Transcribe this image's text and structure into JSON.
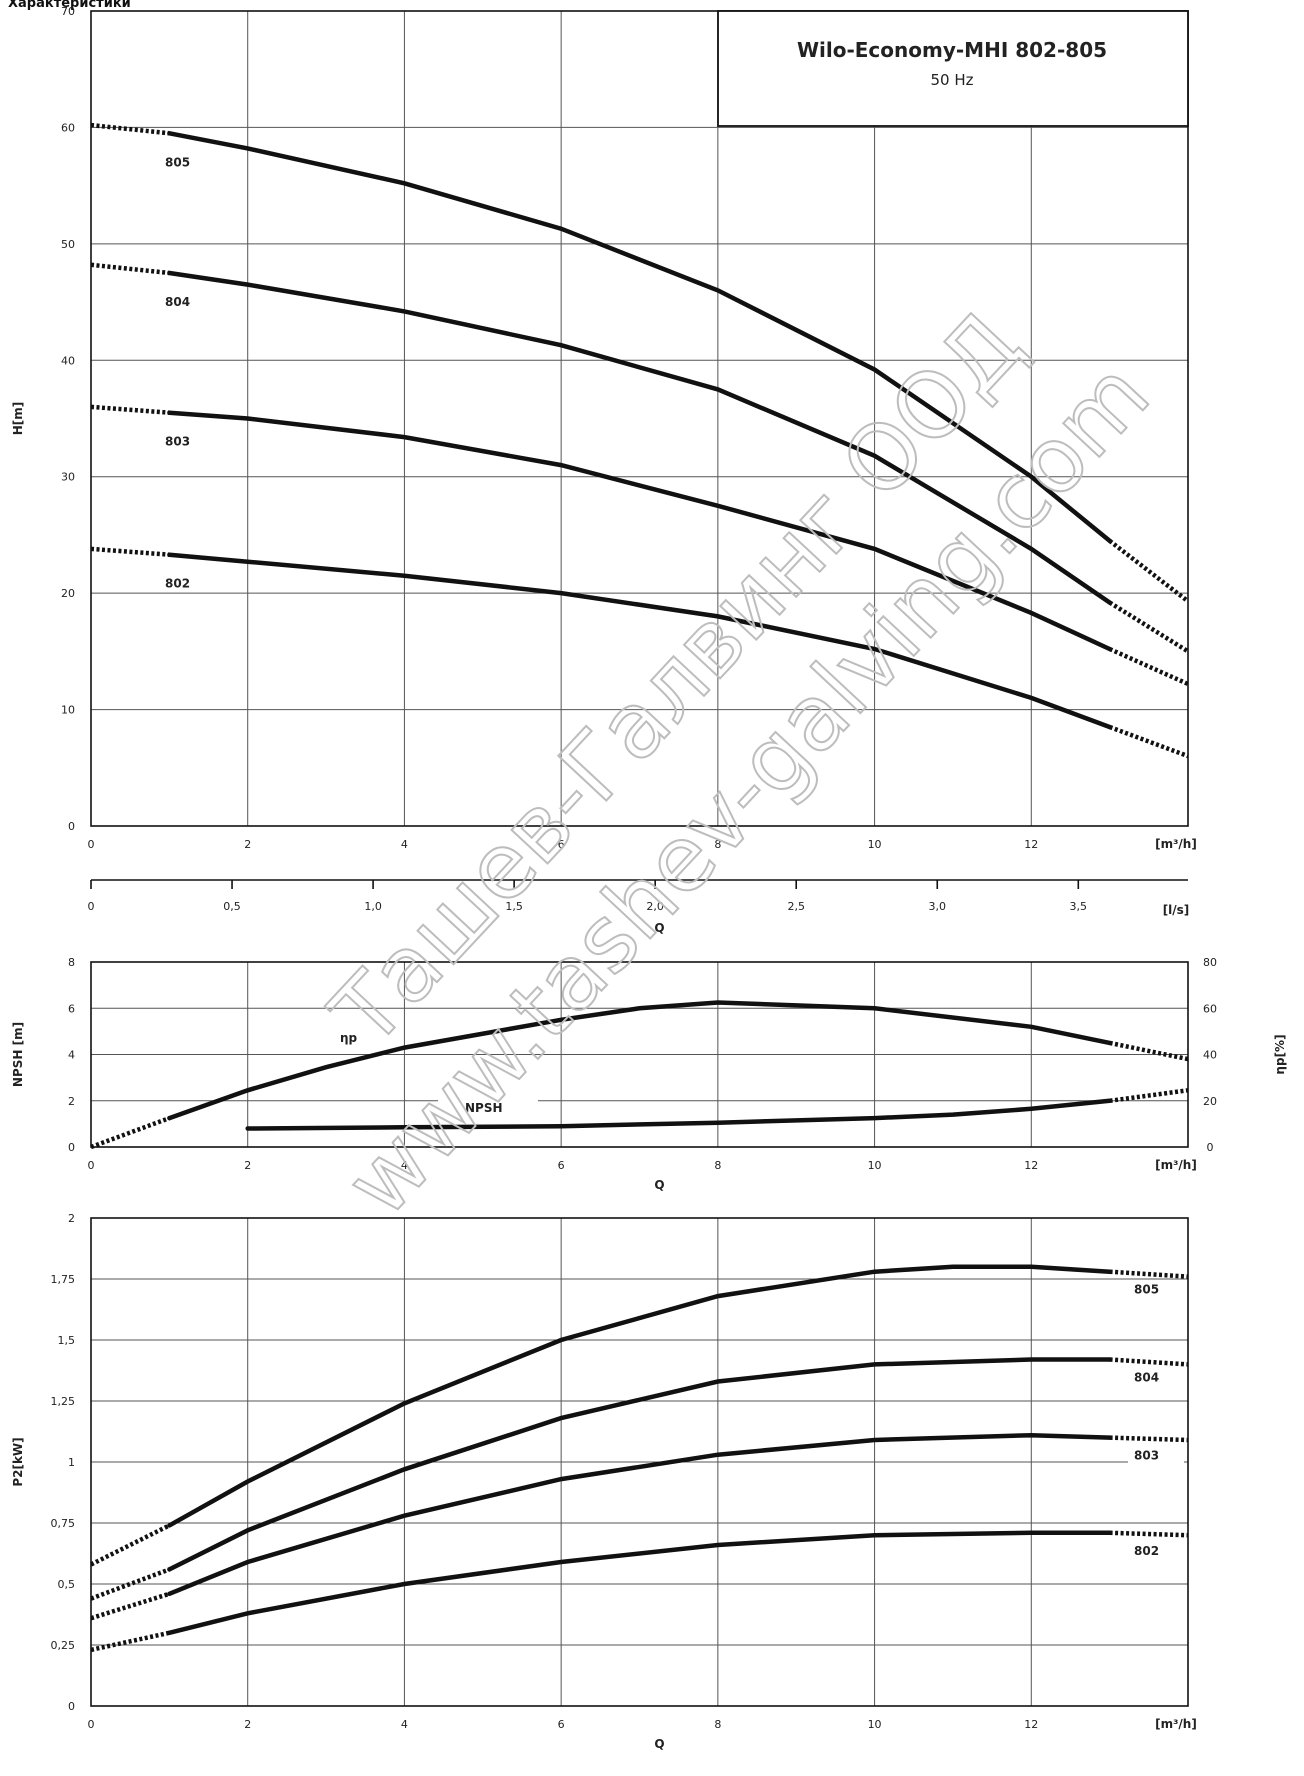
{
  "page": {
    "title": "Характеристики",
    "watermark_lines": [
      "Ташев-Галвинг ООД",
      "www.tashev-galving.com"
    ]
  },
  "legend_box": {
    "title": "Wilo-Economy-MHI 802-805",
    "subtitle": "50 Hz"
  },
  "chart_data": [
    {
      "id": "head",
      "type": "line",
      "xlabel": "[m³/h]",
      "ylabel": "H[m]",
      "xlim": [
        0,
        14
      ],
      "ylim": [
        0,
        70
      ],
      "xticks": [
        0,
        2,
        4,
        6,
        8,
        10,
        12
      ],
      "yticks": [
        0,
        10,
        20,
        30,
        40,
        50,
        60,
        70
      ],
      "grid": true,
      "solid_range": [
        1,
        13
      ],
      "secondary_axis": {
        "label": "[l/s]",
        "title": "Q",
        "ticks": [
          0,
          0.5,
          1.0,
          1.5,
          2.0,
          2.5,
          3.0,
          3.5
        ],
        "tick_labels": [
          "0",
          "0,5",
          "1,0",
          "1,5",
          "2,0",
          "2,5",
          "3,0",
          "3,5"
        ]
      },
      "series": [
        {
          "name": "805",
          "x": [
            0,
            1,
            2,
            4,
            6,
            8,
            10,
            12,
            13,
            14
          ],
          "y": [
            60.2,
            59.5,
            58.2,
            55.2,
            51.3,
            46.0,
            39.2,
            30.0,
            24.5,
            19.3
          ]
        },
        {
          "name": "804",
          "x": [
            0,
            1,
            2,
            4,
            6,
            8,
            10,
            12,
            13,
            14
          ],
          "y": [
            48.2,
            47.5,
            46.5,
            44.2,
            41.3,
            37.5,
            31.8,
            23.8,
            19.2,
            15.0
          ]
        },
        {
          "name": "803",
          "x": [
            0,
            1,
            2,
            4,
            6,
            8,
            10,
            12,
            13,
            14
          ],
          "y": [
            36.0,
            35.5,
            35.0,
            33.4,
            31.0,
            27.5,
            23.8,
            18.3,
            15.2,
            12.2
          ]
        },
        {
          "name": "802",
          "x": [
            0,
            1,
            2,
            4,
            6,
            8,
            10,
            12,
            13,
            14
          ],
          "y": [
            23.8,
            23.3,
            22.7,
            21.5,
            20.0,
            18.0,
            15.2,
            11.0,
            8.5,
            6.0
          ]
        }
      ]
    },
    {
      "id": "npsh-efficiency",
      "type": "line",
      "xlabel": "[m³/h]",
      "xtitle": "Q",
      "ylabel": "NPSH [m]",
      "y2label": "ηp[%]",
      "xlim": [
        0,
        14
      ],
      "ylim": [
        0,
        8
      ],
      "y2lim": [
        0,
        80
      ],
      "xticks": [
        0,
        2,
        4,
        6,
        8,
        10,
        12
      ],
      "yticks": [
        0,
        2,
        4,
        6,
        8
      ],
      "y2ticks": [
        0,
        20,
        40,
        60,
        80
      ],
      "grid": true,
      "series": [
        {
          "name": "ηp",
          "axis": "right",
          "x": [
            0,
            1,
            2,
            3,
            4,
            6,
            7,
            8,
            10,
            12,
            13,
            14
          ],
          "y": [
            0,
            12.5,
            24.5,
            34.5,
            43,
            55,
            60,
            62.5,
            60,
            52,
            45,
            38
          ],
          "solid_range": [
            1,
            13
          ]
        },
        {
          "name": "NPSH",
          "axis": "left",
          "x": [
            2,
            4,
            6,
            8,
            10,
            11,
            12,
            13,
            14
          ],
          "y": [
            0.8,
            0.85,
            0.9,
            1.05,
            1.25,
            1.4,
            1.65,
            2.0,
            2.45
          ],
          "solid_range": [
            2,
            13
          ]
        }
      ]
    },
    {
      "id": "power",
      "type": "line",
      "xlabel": "[m³/h]",
      "xtitle": "Q",
      "ylabel": "P2[kW]",
      "xlim": [
        0,
        14
      ],
      "ylim": [
        0,
        2
      ],
      "xticks": [
        0,
        2,
        4,
        6,
        8,
        10,
        12
      ],
      "yticks": [
        0,
        0.25,
        0.5,
        0.75,
        1,
        1.25,
        1.5,
        1.75,
        2
      ],
      "ytick_labels": [
        "0",
        "0,25",
        "0,5",
        "0,75",
        "1",
        "1,25",
        "1,5",
        "1,75",
        "2"
      ],
      "grid": true,
      "solid_range": [
        1,
        13
      ],
      "series": [
        {
          "name": "805",
          "x": [
            0,
            1,
            2,
            4,
            6,
            8,
            10,
            11,
            12,
            13,
            14
          ],
          "y": [
            0.58,
            0.74,
            0.92,
            1.24,
            1.5,
            1.68,
            1.78,
            1.8,
            1.8,
            1.78,
            1.76
          ]
        },
        {
          "name": "804",
          "x": [
            0,
            1,
            2,
            4,
            6,
            8,
            10,
            12,
            13,
            14
          ],
          "y": [
            0.44,
            0.56,
            0.72,
            0.97,
            1.18,
            1.33,
            1.4,
            1.42,
            1.42,
            1.4
          ]
        },
        {
          "name": "803",
          "x": [
            0,
            1,
            2,
            4,
            6,
            8,
            10,
            12,
            13,
            14
          ],
          "y": [
            0.36,
            0.46,
            0.59,
            0.78,
            0.93,
            1.03,
            1.09,
            1.11,
            1.1,
            1.09
          ]
        },
        {
          "name": "802",
          "x": [
            0,
            1,
            2,
            4,
            6,
            8,
            10,
            12,
            13,
            14
          ],
          "y": [
            0.23,
            0.3,
            0.38,
            0.5,
            0.59,
            0.66,
            0.7,
            0.71,
            0.71,
            0.7
          ]
        }
      ]
    }
  ]
}
